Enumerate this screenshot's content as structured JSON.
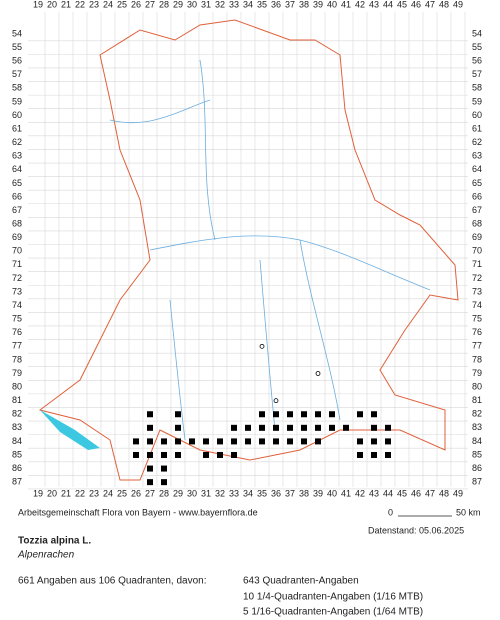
{
  "grid": {
    "columns": [
      19,
      20,
      21,
      22,
      23,
      24,
      25,
      26,
      27,
      28,
      29,
      30,
      31,
      32,
      33,
      34,
      35,
      36,
      37,
      38,
      39,
      40,
      41,
      42,
      43,
      44,
      45,
      46,
      47,
      48,
      49
    ],
    "rows": [
      54,
      55,
      56,
      57,
      58,
      59,
      60,
      61,
      62,
      63,
      64,
      65,
      66,
      67,
      68,
      69,
      70,
      71,
      72,
      73,
      74,
      75,
      76,
      77,
      78,
      79,
      80,
      81,
      82,
      83,
      84,
      85,
      86,
      87
    ]
  },
  "footer": {
    "credit": "Arbeitsgemeinschaft Flora von Bayern - www.bayernflora.de",
    "scale_start": "0",
    "scale_end": "50 km",
    "date": "Datenstand: 05.06.2025"
  },
  "species": {
    "name": "Tozzia alpina L.",
    "common": "Alpenrachen"
  },
  "summary": {
    "total": "661 Angaben aus 106 Quadranten, davon:",
    "lines": [
      "643 Quadranten-Angaben",
      "10 1/4-Quadranten-Angaben (1/16 MTB)",
      "5 1/16-Quadranten-Angaben (1/64 MTB)"
    ]
  }
}
